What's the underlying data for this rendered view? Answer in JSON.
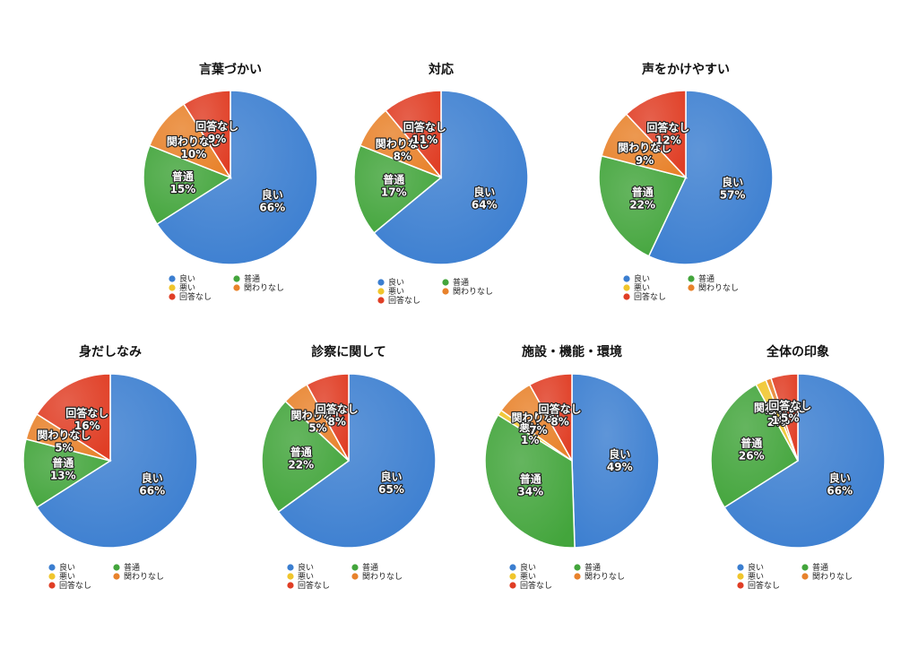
{
  "categories": [
    "良い",
    "悪い",
    "回答なし",
    "関わりなし",
    "普通"
  ],
  "legend_order": [
    0,
    4,
    1,
    3,
    2
  ],
  "colors": [
    "#3b7ed0",
    "#f0c52c",
    "#e03e25",
    "#e8822b",
    "#43a53c"
  ],
  "chart_data": [
    {
      "type": "pie",
      "title": "言葉づかい",
      "values": [
        66,
        0,
        9,
        10,
        15
      ]
    },
    {
      "type": "pie",
      "title": "対応",
      "values": [
        64,
        0,
        11,
        8,
        17
      ]
    },
    {
      "type": "pie",
      "title": "声をかけやすい",
      "values": [
        57,
        0,
        12,
        9,
        22
      ]
    },
    {
      "type": "pie",
      "title": "身だしなみ",
      "values": [
        66,
        0,
        16,
        5,
        13
      ]
    },
    {
      "type": "pie",
      "title": "診察に関して",
      "values": [
        65,
        0,
        8,
        5,
        22
      ]
    },
    {
      "type": "pie",
      "title": "施設・機能・環境",
      "values": [
        49,
        1,
        8,
        7,
        34
      ]
    },
    {
      "type": "pie",
      "title": "全体の印象",
      "values": [
        66,
        2,
        5,
        1,
        26
      ]
    }
  ]
}
